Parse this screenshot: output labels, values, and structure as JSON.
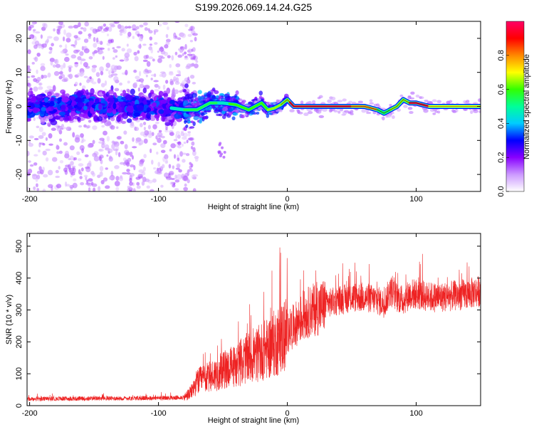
{
  "title": "S199.2026.069.14.24.G25",
  "chart_data": [
    {
      "type": "heatmap",
      "name": "spectrogram",
      "xlabel": "Height of straight line (km)",
      "ylabel": "Frequency (Hz)",
      "xlim": [
        -202,
        150
      ],
      "ylim": [
        -25,
        25
      ],
      "xticks": [
        -200,
        -100,
        0,
        100
      ],
      "xtick_labels": [
        "-200",
        "-100",
        "0",
        "100"
      ],
      "yticks": [
        -20,
        -10,
        0,
        10,
        20
      ],
      "ytick_labels": [
        "-20",
        "-10",
        "0",
        "10",
        "20"
      ],
      "colorbar": {
        "label": "Normalized spectral amplitude",
        "range": [
          0,
          1
        ],
        "ticks": [
          0.0,
          0.2,
          0.4,
          0.6,
          0.8
        ],
        "tick_labels": [
          "0.0",
          "0.2",
          "0.4",
          "0.6",
          "0.8"
        ],
        "colors": [
          "#ffffff",
          "#cc99ff",
          "#8800ff",
          "#0000ff",
          "#00ccff",
          "#00ff99",
          "#33ff00",
          "#ffff00",
          "#ff8800",
          "#ff0000",
          "#ff0066"
        ]
      },
      "ridge_line": {
        "x": [
          -200,
          -150,
          -100,
          -80,
          -70,
          -60,
          -50,
          -40,
          -30,
          -25,
          -20,
          -15,
          -10,
          -5,
          0,
          5,
          10,
          20,
          40,
          60,
          70,
          75,
          80,
          85,
          90,
          95,
          100,
          110,
          120,
          130,
          140,
          150
        ],
        "y": [
          0,
          0.5,
          0,
          -1,
          -1,
          1,
          1,
          0.5,
          -1,
          0,
          1,
          -1,
          -0.5,
          0.5,
          2,
          0,
          0,
          0,
          0,
          0,
          -1,
          -2,
          -1,
          0,
          2,
          1,
          1,
          0,
          0,
          0,
          0,
          0
        ]
      },
      "low_snr_scatter_region_km": [
        -202,
        -80
      ]
    },
    {
      "type": "line",
      "name": "snr",
      "xlabel": "Height of straight line (km)",
      "ylabel": "SNR (10 * v/v)",
      "xlim": [
        -202,
        150
      ],
      "ylim": [
        0,
        540
      ],
      "xticks": [
        -200,
        -100,
        0,
        100
      ],
      "xtick_labels": [
        "-200",
        "-100",
        "0",
        "100"
      ],
      "yticks": [
        0,
        100,
        200,
        300,
        400,
        500
      ],
      "ytick_labels": [
        "0",
        "100",
        "200",
        "300",
        "400",
        "500"
      ],
      "color": "#ee2222",
      "series": [
        {
          "name": "SNR",
          "x": [
            -202,
            -180,
            -160,
            -140,
            -120,
            -100,
            -90,
            -80,
            -75,
            -70,
            -65,
            -60,
            -55,
            -50,
            -45,
            -40,
            -35,
            -30,
            -25,
            -20,
            -15,
            -10,
            -5,
            0,
            5,
            10,
            15,
            20,
            25,
            30,
            40,
            50,
            60,
            70,
            75,
            80,
            85,
            90,
            95,
            100,
            110,
            120,
            130,
            140,
            150
          ],
          "y": [
            20,
            22,
            22,
            23,
            23,
            24,
            24,
            26,
            40,
            75,
            85,
            90,
            100,
            110,
            120,
            125,
            140,
            150,
            155,
            170,
            180,
            195,
            210,
            230,
            250,
            270,
            290,
            300,
            305,
            320,
            330,
            340,
            340,
            330,
            320,
            360,
            340,
            330,
            350,
            350,
            340,
            340,
            345,
            350,
            360
          ]
        }
      ]
    }
  ]
}
